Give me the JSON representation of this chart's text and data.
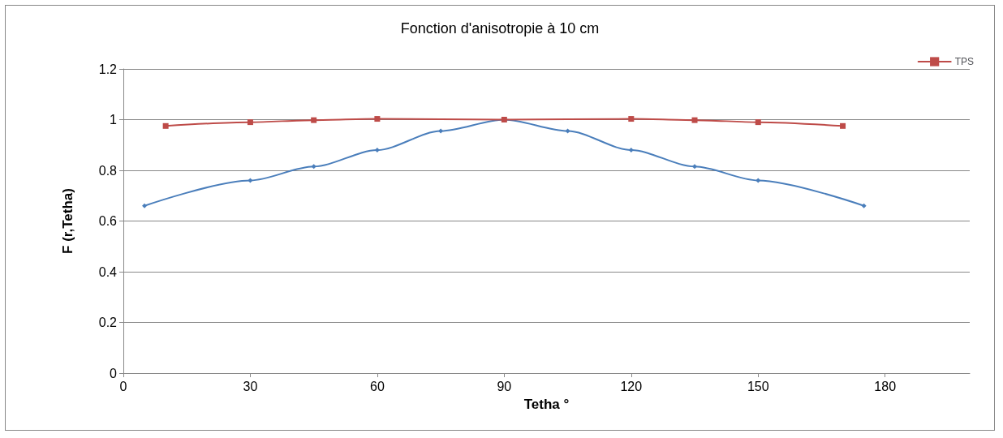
{
  "chart_data": {
    "type": "line",
    "title": "Fonction d'anisotropie à 10 cm",
    "xlabel": "Tetha °",
    "ylabel": "F (r,Tetha)",
    "xlim": [
      0,
      200
    ],
    "xticks": [
      0,
      30,
      60,
      90,
      120,
      150,
      180
    ],
    "ylim": [
      0,
      1.2
    ],
    "yticks": [
      0,
      0.2,
      0.4,
      0.6,
      0.8,
      1,
      1.2
    ],
    "grid": "y",
    "legend": "top right",
    "series": [
      {
        "color": "#4a7ebb",
        "marker": "diamond",
        "x": [
          5,
          30,
          45,
          60,
          75,
          90,
          105,
          120,
          135,
          150,
          175
        ],
        "values": [
          0.66,
          0.76,
          0.815,
          0.88,
          0.955,
          1.0,
          0.955,
          0.88,
          0.815,
          0.76,
          0.66
        ]
      },
      {
        "name": "TPS",
        "color": "#be4b48",
        "marker": "square",
        "x": [
          10,
          30,
          45,
          60,
          90,
          120,
          135,
          150,
          170
        ],
        "values": [
          0.975,
          0.99,
          0.998,
          1.003,
          1.0,
          1.003,
          0.998,
          0.99,
          0.975
        ]
      }
    ]
  }
}
